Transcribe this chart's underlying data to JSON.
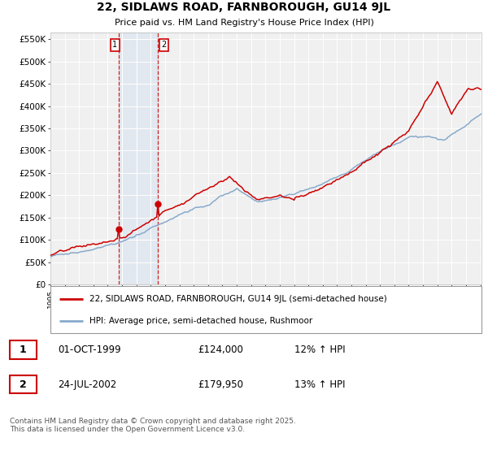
{
  "title": "22, SIDLAWS ROAD, FARNBOROUGH, GU14 9JL",
  "subtitle": "Price paid vs. HM Land Registry's House Price Index (HPI)",
  "ylabel_ticks": [
    "£0",
    "£50K",
    "£100K",
    "£150K",
    "£200K",
    "£250K",
    "£300K",
    "£350K",
    "£400K",
    "£450K",
    "£500K",
    "£550K"
  ],
  "ytick_values": [
    0,
    50000,
    100000,
    150000,
    200000,
    250000,
    300000,
    350000,
    400000,
    450000,
    500000,
    550000
  ],
  "ylim": [
    0,
    565000
  ],
  "red_line_color": "#cc0000",
  "blue_line_color": "#88aacc",
  "purchase1_price": 124000,
  "purchase2_price": 179950,
  "legend_entry1": "22, SIDLAWS ROAD, FARNBOROUGH, GU14 9JL (semi-detached house)",
  "legend_entry2": "HPI: Average price, semi-detached house, Rushmoor",
  "footer": "Contains HM Land Registry data © Crown copyright and database right 2025.\nThis data is licensed under the Open Government Licence v3.0.",
  "background_color": "#ffffff",
  "plot_bg_color": "#f0f0f0"
}
